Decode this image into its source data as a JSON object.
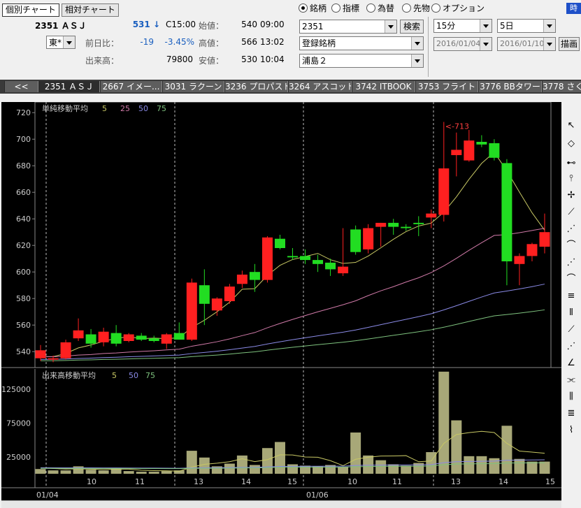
{
  "top_buttons": {
    "individual": "個別チャート",
    "relative": "相対チャート"
  },
  "stock": {
    "code_name": "2351 ＡＳＪ",
    "price": "531",
    "arrow": "↓",
    "time": "C15:00",
    "open_label": "始値：",
    "open_value": "540",
    "open_time": "09:00",
    "prev_label": "前日比：",
    "change": "-19",
    "change_pct": "-3.45%",
    "high_label": "高値：",
    "high_value": "566",
    "high_time": "13:02",
    "volume_label": "出来高：",
    "volume_value": "79800",
    "low_label": "安値：",
    "low_value": "530",
    "low_time": "10:04",
    "market": "東*"
  },
  "radios": [
    {
      "label": "銘柄",
      "checked": true
    },
    {
      "label": "指標",
      "checked": false
    },
    {
      "label": "為替",
      "checked": false
    },
    {
      "label": "先物",
      "checked": false
    },
    {
      "label": "オプション",
      "checked": false
    }
  ],
  "search": {
    "code": "2351",
    "button": "検索",
    "list": "登録銘柄",
    "group": "浦島２"
  },
  "period": {
    "interval": "15分",
    "span": "5日",
    "from": "2016/01/04",
    "to": "2016/01/10",
    "draw_button": "描画",
    "corner": "時"
  },
  "tabs": [
    "<<",
    "2351 ＡＳＪ",
    "2667 イメー...",
    "3031 ラクーン",
    "3236 プロパスト",
    "3264 アスコット",
    "3742 ITBOOK",
    "3753 フライト",
    "3776 BBタワー",
    "3778 さく"
  ],
  "chart_data": {
    "type": "candlestick",
    "price_panel": {
      "legend_title": "単純移動平均",
      "ma_periods": [
        {
          "label": "5",
          "color": "#c8c864"
        },
        {
          "label": "25",
          "color": "#d07aa8"
        },
        {
          "label": "50",
          "color": "#8a8ae6"
        },
        {
          "label": "75",
          "color": "#7ec27e"
        }
      ],
      "y_ticks": [
        540,
        560,
        580,
        600,
        620,
        640,
        660,
        680,
        700,
        720
      ],
      "ylim": [
        528,
        728
      ],
      "annotation": "<-713",
      "up_color": "#ff2020",
      "down_color": "#22dd22",
      "candles": [
        {
          "o": 535,
          "h": 545,
          "l": 533,
          "c": 541
        },
        {
          "o": 534,
          "h": 537,
          "l": 532,
          "c": 535
        },
        {
          "o": 535,
          "h": 549,
          "l": 534,
          "c": 547
        },
        {
          "o": 550,
          "h": 565,
          "l": 548,
          "c": 556
        },
        {
          "o": 553,
          "h": 557,
          "l": 543,
          "c": 546
        },
        {
          "o": 547,
          "h": 558,
          "l": 544,
          "c": 555
        },
        {
          "o": 554,
          "h": 560,
          "l": 544,
          "c": 546
        },
        {
          "o": 548,
          "h": 554,
          "l": 547,
          "c": 553
        },
        {
          "o": 552,
          "h": 554,
          "l": 548,
          "c": 549
        },
        {
          "o": 550,
          "h": 552,
          "l": 547,
          "c": 548
        },
        {
          "o": 546,
          "h": 554,
          "l": 542,
          "c": 553
        },
        {
          "o": 554,
          "h": 562,
          "l": 549,
          "c": 549
        },
        {
          "o": 549,
          "h": 595,
          "l": 548,
          "c": 592
        },
        {
          "o": 590,
          "h": 602,
          "l": 560,
          "c": 576
        },
        {
          "o": 571,
          "h": 581,
          "l": 567,
          "c": 580
        },
        {
          "o": 578,
          "h": 591,
          "l": 576,
          "c": 589
        },
        {
          "o": 591,
          "h": 601,
          "l": 588,
          "c": 598
        },
        {
          "o": 600,
          "h": 606,
          "l": 585,
          "c": 594
        },
        {
          "o": 594,
          "h": 627,
          "l": 592,
          "c": 626
        },
        {
          "o": 625,
          "h": 628,
          "l": 617,
          "c": 618
        },
        {
          "o": 612,
          "h": 618,
          "l": 609,
          "c": 611
        },
        {
          "o": 612,
          "h": 617,
          "l": 606,
          "c": 609
        },
        {
          "o": 609,
          "h": 613,
          "l": 600,
          "c": 606
        },
        {
          "o": 607,
          "h": 610,
          "l": 597,
          "c": 602
        },
        {
          "o": 599,
          "h": 633,
          "l": 597,
          "c": 604
        },
        {
          "o": 632,
          "h": 635,
          "l": 613,
          "c": 615
        },
        {
          "o": 617,
          "h": 636,
          "l": 614,
          "c": 633
        },
        {
          "o": 634,
          "h": 637,
          "l": 619,
          "c": 637
        },
        {
          "o": 637,
          "h": 640,
          "l": 628,
          "c": 634
        },
        {
          "o": 634,
          "h": 636,
          "l": 631,
          "c": 633
        },
        {
          "o": 637,
          "h": 642,
          "l": 627,
          "c": 636
        },
        {
          "o": 641,
          "h": 647,
          "l": 633,
          "c": 644
        },
        {
          "o": 643,
          "h": 713,
          "l": 638,
          "c": 678
        },
        {
          "o": 688,
          "h": 705,
          "l": 672,
          "c": 692
        },
        {
          "o": 684,
          "h": 707,
          "l": 683,
          "c": 699
        },
        {
          "o": 698,
          "h": 703,
          "l": 694,
          "c": 696
        },
        {
          "o": 697,
          "h": 700,
          "l": 684,
          "c": 686
        },
        {
          "o": 682,
          "h": 685,
          "l": 590,
          "c": 608
        },
        {
          "o": 606,
          "h": 614,
          "l": 590,
          "c": 612
        },
        {
          "o": 612,
          "h": 622,
          "l": 608,
          "c": 621
        },
        {
          "o": 619,
          "h": 644,
          "l": 614,
          "c": 630
        }
      ]
    },
    "volume_panel": {
      "legend_title": "出来高移動平均",
      "ma_periods": [
        {
          "label": "5",
          "color": "#c8c864"
        },
        {
          "label": "50",
          "color": "#8a8ae6"
        },
        {
          "label": "75",
          "color": "#7ec27e"
        }
      ],
      "y_ticks": [
        25000,
        75000,
        125000
      ],
      "ylim": [
        0,
        155000
      ],
      "bar_color": "#a8a878",
      "values": [
        7000,
        5000,
        5000,
        11000,
        6000,
        5000,
        8000,
        4000,
        3000,
        3000,
        4000,
        5000,
        34000,
        24000,
        11000,
        15000,
        27000,
        13000,
        38000,
        47000,
        14000,
        12000,
        11000,
        13000,
        10000,
        61000,
        27000,
        20000,
        14000,
        12000,
        16000,
        32000,
        151000,
        79000,
        26000,
        26000,
        23000,
        71000,
        22000,
        18000,
        18000
      ]
    },
    "x_labels": [
      "10",
      "11",
      "13",
      "14",
      "15",
      "10",
      "11",
      "13",
      "14",
      "15"
    ],
    "date_labels": [
      "01/04",
      "01/06"
    ]
  }
}
